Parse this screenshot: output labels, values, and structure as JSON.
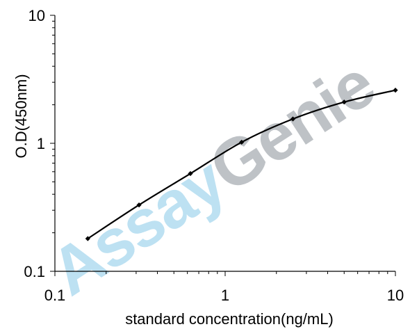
{
  "chart_data": {
    "type": "line",
    "title": "",
    "xlabel": "standard concentration(ng/mL)",
    "ylabel": "O.D(450nm)",
    "x_scale": "log",
    "y_scale": "log",
    "xlim": [
      0.1,
      10
    ],
    "ylim": [
      0.1,
      10
    ],
    "x_ticks": [
      "0.1",
      "1",
      "10"
    ],
    "y_ticks": [
      "0.1",
      "1",
      "10"
    ],
    "grid": false,
    "legend": "none",
    "series": [
      {
        "x": [
          0.156,
          0.312,
          0.625,
          1.25,
          2.5,
          5,
          10
        ],
        "y": [
          0.18,
          0.33,
          0.58,
          1.02,
          1.55,
          2.1,
          2.6
        ]
      }
    ],
    "line_color": "#000000",
    "marker": "diamond"
  },
  "watermark": {
    "part1": "Assay",
    "part2": "Genie",
    "color1": "#a8d8ee",
    "color2": "#a9aeb4"
  }
}
